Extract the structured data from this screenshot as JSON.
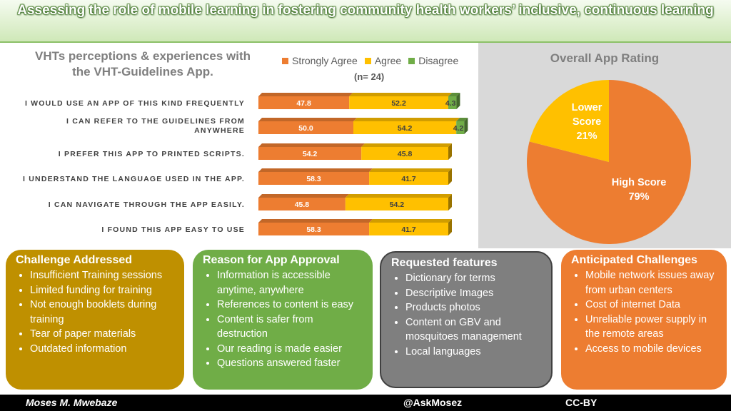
{
  "header": {
    "title": "Assessing the role of mobile learning in fostering community health workers’ inclusive, continuous learning"
  },
  "chart": {
    "title_line1": "VHTs perceptions & experiences with",
    "title_line2": "the VHT-Guidelines App.",
    "n_label": "(n= 24)"
  },
  "chart_data": [
    {
      "type": "bar",
      "orientation": "horizontal",
      "stacked": true,
      "title": "VHTs perceptions & experiences with the VHT-Guidelines App.",
      "subtitle": "(n= 24)",
      "categories": [
        "I WOULD USE AN APP OF THIS KIND FREQUENTLY",
        "I CAN REFER TO THE GUIDELINES FROM ANYWHERE",
        "I PREFER THIS APP TO PRINTED SCRIPTS.",
        "I UNDERSTAND THE LANGUAGE USED IN THE APP.",
        "I CAN NAVIGATE THROUGH THE APP EASILY.",
        "I FOUND THIS APP EASY TO USE"
      ],
      "series": [
        {
          "name": "Strongly Agree",
          "color": "#ed7d31",
          "values": [
            47.8,
            50.0,
            54.2,
            58.3,
            45.8,
            58.3
          ],
          "labels": [
            "47.8",
            "50.0",
            "54.2",
            "58.3",
            "45.8",
            "58.3"
          ]
        },
        {
          "name": "Agree",
          "color": "#ffc000",
          "values": [
            52.2,
            54.2,
            45.8,
            41.7,
            54.2,
            41.7
          ],
          "labels": [
            "52.2",
            "54.2",
            "45.8",
            "41.7",
            "54.2",
            "41.7"
          ]
        },
        {
          "name": "Disagree",
          "color": "#70ad47",
          "values": [
            4.3,
            4.2,
            0,
            0,
            0,
            0
          ],
          "labels": [
            "4.3",
            "4.2",
            "",
            "",
            "",
            ""
          ]
        }
      ],
      "legend_position": "top",
      "grid": false
    },
    {
      "type": "pie",
      "title": "Overall App Rating",
      "categories": [
        "High Score",
        "Lower Score"
      ],
      "values": [
        79,
        21
      ],
      "labels": [
        "79%",
        "21%"
      ],
      "colors": [
        "#ed7d31",
        "#ffc000"
      ]
    }
  ],
  "boxes": [
    {
      "title": "Challenge Addressed",
      "color": "#bf9000",
      "items": [
        "Insufficient Training sessions",
        "Limited funding for training",
        "Not enough booklets during training",
        "Tear of paper materials",
        "Outdated information"
      ]
    },
    {
      "title": "Reason for App Approval",
      "color": "#70ad47",
      "items": [
        "Information is accessible anytime, anywhere",
        "References  to content is easy",
        "Content is safer from destruction",
        "Our reading is made easier",
        "Questions answered faster"
      ]
    },
    {
      "title": "Requested features",
      "color": "#7f7f7f",
      "items": [
        "Dictionary for terms",
        "Descriptive Images",
        "Products photos",
        "Content on GBV and mosquitoes management",
        "Local languages"
      ]
    },
    {
      "title": "Anticipated Challenges",
      "color": "#ed7d31",
      "items": [
        "Mobile network issues away from urban centers",
        "Cost of internet Data",
        "Unreliable power supply in the remote areas",
        "Access to mobile devices"
      ]
    }
  ],
  "footer": {
    "author": "Moses M. Mwebaze",
    "handle": "@AskMosez",
    "license": "CC-BY"
  }
}
